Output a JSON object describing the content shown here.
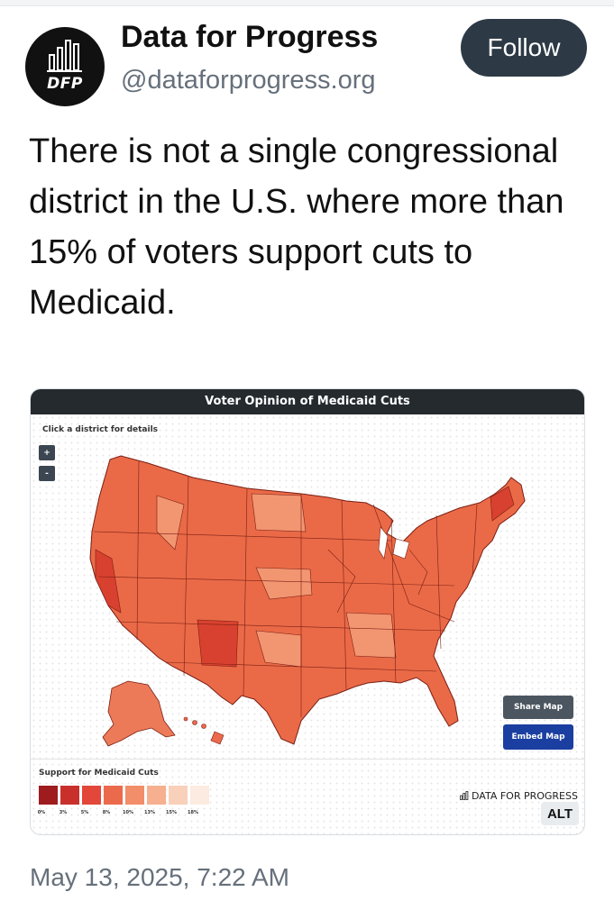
{
  "account": {
    "display_name": "Data for Progress",
    "handle": "@dataforprogress.org",
    "avatar_text": "DFP"
  },
  "follow_button": {
    "label": "Follow"
  },
  "post": {
    "text": "There is not a single congressional district in the U.S. where more than 15% of voters support cuts to Medicaid.",
    "timestamp": "May 13, 2025, 7:22 AM"
  },
  "embed": {
    "title": "Voter Opinion of Medicaid Cuts",
    "instruction": "Click a district for details",
    "zoom_in": "+",
    "zoom_out": "-",
    "share_button": "Share Map",
    "embed_button": "Embed Map",
    "legend_title": "Support for Medicaid Cuts",
    "legend": [
      {
        "label": "0%",
        "color": "#9e1b1e"
      },
      {
        "label": "3%",
        "color": "#c9302c"
      },
      {
        "label": "5%",
        "color": "#e2473a"
      },
      {
        "label": "8%",
        "color": "#ec6a4c"
      },
      {
        "label": "10%",
        "color": "#f28e6a"
      },
      {
        "label": "13%",
        "color": "#f6b08f"
      },
      {
        "label": "15%",
        "color": "#f9d0b9"
      },
      {
        "label": "18%",
        "color": "#fcebe0"
      }
    ],
    "wordmark": "DATA FOR PROGRESS",
    "alt_badge": "ALT"
  },
  "colors": {
    "follow_bg": "#2d3a46",
    "map_fill_main": "#ea6a47",
    "map_fill_light": "#f29571",
    "map_fill_dark": "#d8412f",
    "header_bg": "#252a2f"
  }
}
